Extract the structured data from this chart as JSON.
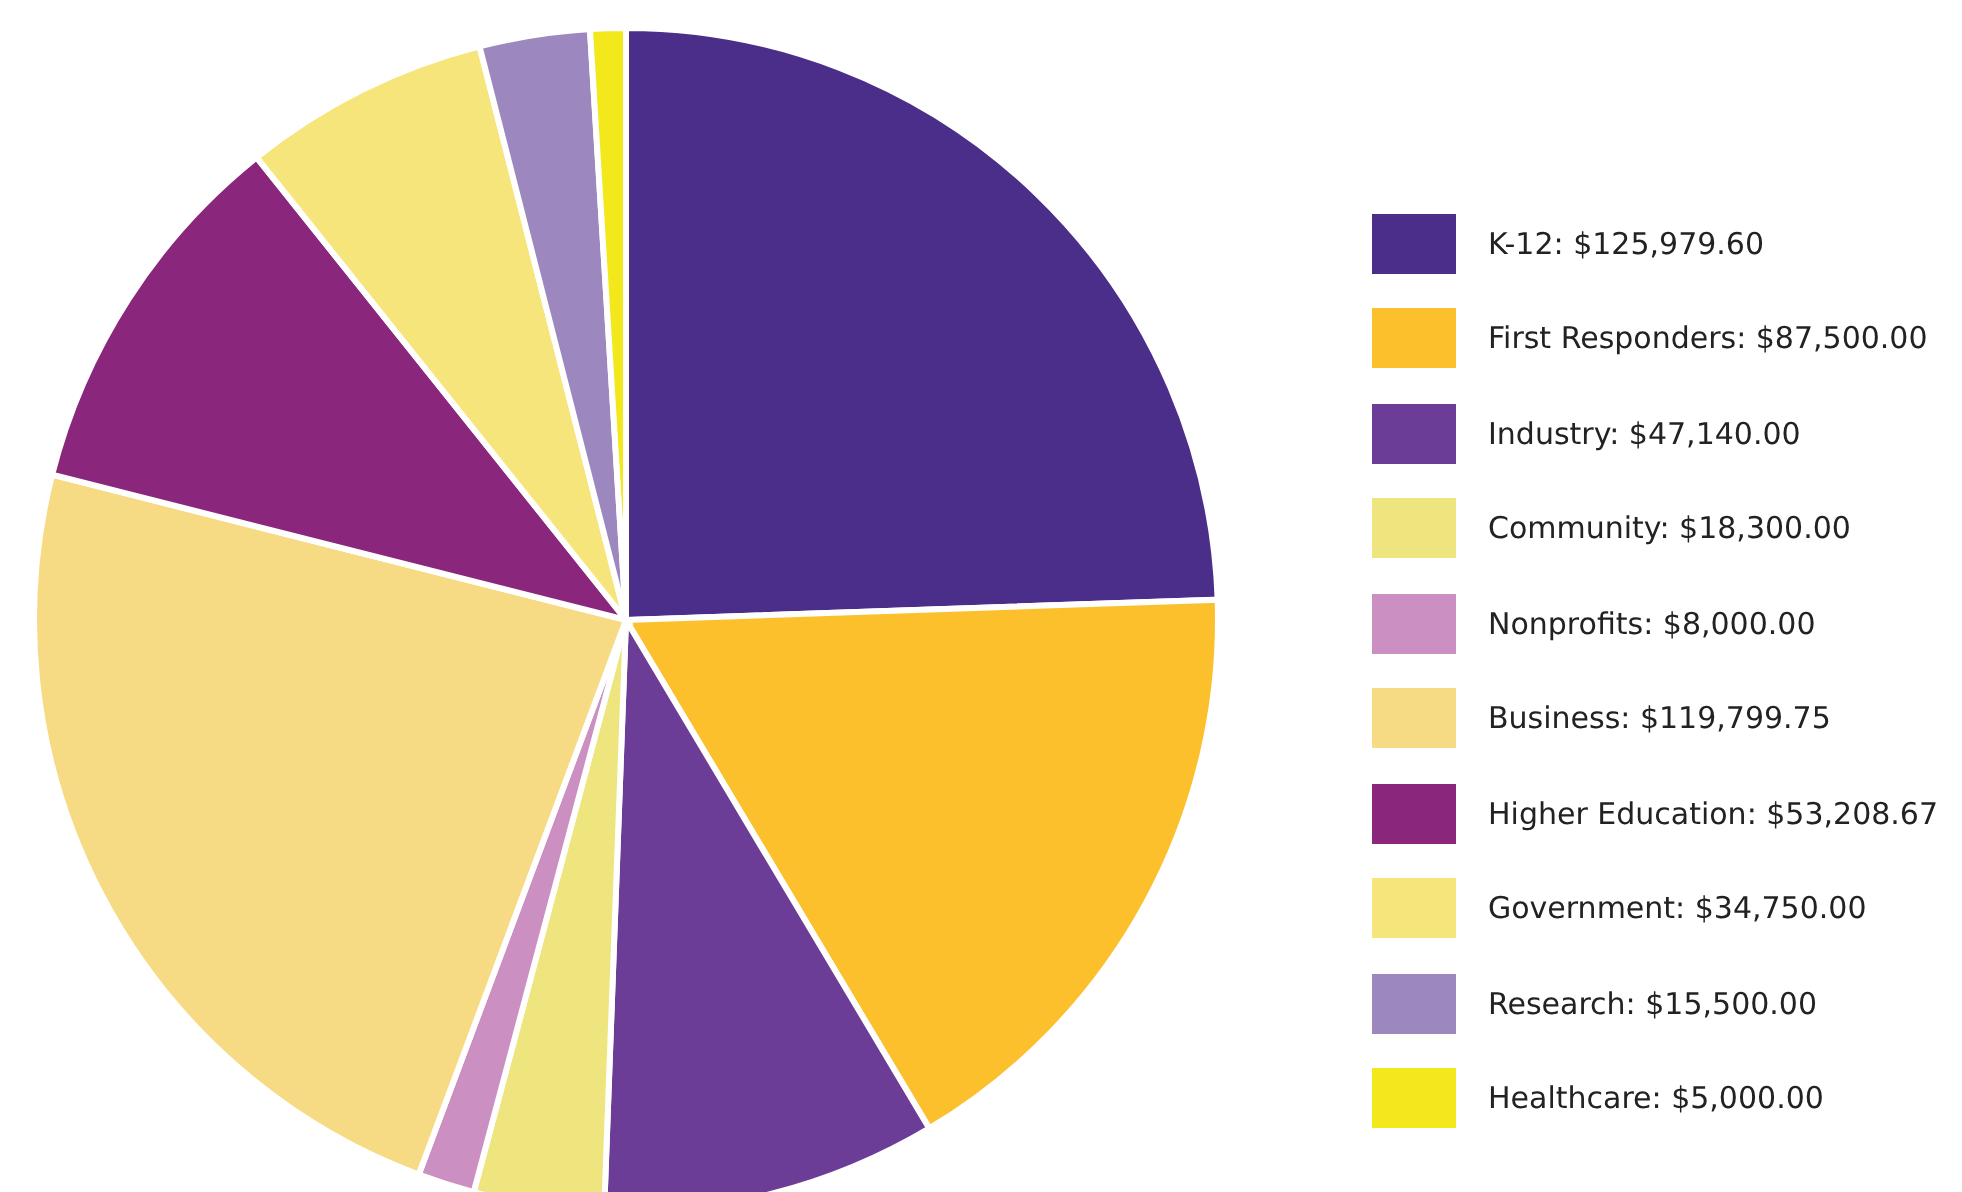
{
  "chart_data": {
    "type": "pie",
    "categories": [
      "K-12",
      "First Responders",
      "Industry",
      "Community",
      "Nonprofits",
      "Business",
      "Higher Education",
      "Government",
      "Research",
      "Healthcare"
    ],
    "values": [
      125979.6,
      87500.0,
      47140.0,
      18300.0,
      8000.0,
      119799.75,
      53208.67,
      34750.0,
      15500.0,
      5000.0
    ],
    "value_labels": [
      "$125,979.60",
      "$87,500.00",
      "$47,140.00",
      "$18,300.00",
      "$8,000.00",
      "$119,799.75",
      "$53,208.67",
      "$34,750.00",
      "$15,500.00",
      "$5,000.00"
    ],
    "colors": [
      "#4b2d8a",
      "#fcc02c",
      "#6c3d96",
      "#efe57f",
      "#cb8fc2",
      "#f7db84",
      "#8a267b",
      "#f6e57a",
      "#9c87bf",
      "#f2e81c"
    ],
    "legend": "right"
  }
}
